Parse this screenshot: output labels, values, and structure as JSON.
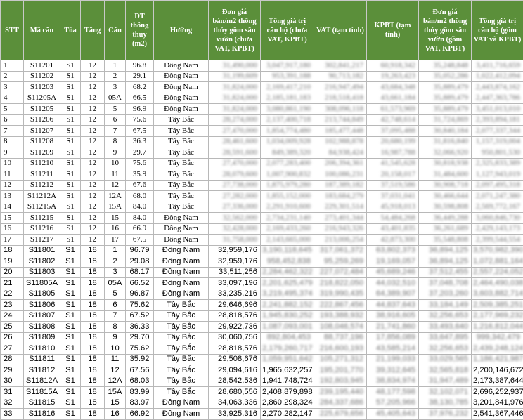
{
  "headers": [
    "STT",
    "Mã căn",
    "Tòa",
    "Tầng",
    "Căn",
    "DT thông thủy (m2)",
    "Hướng",
    "Đơn giá bán/m2 thông thủy gồm sân vườn (chưa VAT, KPBT)",
    "Tổng giá trị căn hộ (chưa VAT, KPBT)",
    "VAT (tạm tính)",
    "KPBT (tạm tính)",
    "Đơn giá bán/m2 thông thủy gồm sân vườn (gồm VAT, KPBT)",
    "Tổng giá trị căn hộ (gồm VAT và KPBT)"
  ],
  "rows": [
    [
      "1",
      "S11201",
      "S1",
      "12",
      "1",
      "96.8",
      "Đông Nam",
      "31,490,000",
      "3,047,917,180",
      "302,841,217",
      "60,918,342",
      "35,248,848",
      "3,411,716,659"
    ],
    [
      "2",
      "S11202",
      "S1",
      "12",
      "2",
      "29.1",
      "Đông Nam",
      "31,199,609",
      "953,391,188",
      "90,713,182",
      "19,263,423",
      "35,052,286",
      "1,022,412,094"
    ],
    [
      "3",
      "S11203",
      "S1",
      "12",
      "3",
      "68.2",
      "Đông Nam",
      "31,824,000",
      "2,169,417,210",
      "216,947,494",
      "43,684,348",
      "35,889,479",
      "2,443,874,162"
    ],
    [
      "4",
      "S11205A",
      "S1",
      "12",
      "05A",
      "66.5",
      "Đông Nam",
      "31,824,000",
      "2,185,181,183",
      "218,518,418",
      "43,661,184",
      "35,889,479",
      "2,447,363,786"
    ],
    [
      "5",
      "S11205",
      "S1",
      "12",
      "5",
      "96.9",
      "Đông Nam",
      "31,824,000",
      "3,080,861,190",
      "308,096,118",
      "61,573,969",
      "35,889,479",
      "3,451,013,010"
    ],
    [
      "6",
      "S11206",
      "S1",
      "12",
      "6",
      "75.6",
      "Tây Bắc",
      "28,274,000",
      "2,137,400,718",
      "213,744,849",
      "42,748,614",
      "31,724,869",
      "2,393,894,181"
    ],
    [
      "7",
      "S11207",
      "S1",
      "12",
      "7",
      "67.5",
      "Tây Bắc",
      "27,470,000",
      "1,854,774,480",
      "185,477,448",
      "37,095,488",
      "30,840,184",
      "2,077,337,344"
    ],
    [
      "8",
      "S11208",
      "S1",
      "12",
      "8",
      "36.3",
      "Tây Bắc",
      "28,461,600",
      "1,034,009,928",
      "102,988,878",
      "20,680,199",
      "31,816,840",
      "1,157,319,004"
    ],
    [
      "9",
      "S11209",
      "S1",
      "12",
      "9",
      "29.7",
      "Tây Bắc",
      "28,591,600",
      "849,389,320",
      "84,938,424",
      "16,987,788",
      "32,066,920",
      "950,801,530"
    ],
    [
      "10",
      "S11210",
      "S1",
      "12",
      "10",
      "75.6",
      "Tây Bắc",
      "27,470,000",
      "2,077,283,400",
      "206,394,361",
      "41,545,628",
      "30,818,938",
      "2,325,833,389"
    ],
    [
      "11",
      "S11211",
      "S1",
      "12",
      "11",
      "35.9",
      "Tây Bắc",
      "28,079,600",
      "1,007,900,832",
      "100,086,231",
      "20,158,017",
      "31,484,600",
      "1,127,943,019"
    ],
    [
      "12",
      "S11212",
      "S1",
      "12",
      "12",
      "67.6",
      "Tây Bắc",
      "27,738,000",
      "1,875,979,280",
      "187,389,182",
      "37,519,586",
      "30,908,718",
      "2,097,495,318"
    ],
    [
      "13",
      "S11212A",
      "S1",
      "12",
      "12A",
      "68.0",
      "Tây Bắc",
      "27,282,000",
      "1,855,152,000",
      "183,684,279",
      "37,031,041",
      "30,466,644",
      "2,071,247,380"
    ],
    [
      "14",
      "S11215A",
      "S1",
      "12",
      "15A",
      "84.0",
      "Tây Bắc",
      "27,336,000",
      "2,291,910,600",
      "229,301,514",
      "45,918,013",
      "30,598,808",
      "2,569,772,167"
    ],
    [
      "15",
      "S11215",
      "S1",
      "12",
      "15",
      "84.0",
      "Đông Nam",
      "32,562,000",
      "2,734,231,140",
      "273,401,344",
      "54,484,268",
      "36,449,288",
      "3,060,846,730"
    ],
    [
      "16",
      "S11216",
      "S1",
      "12",
      "16",
      "66.9",
      "Đông Nam",
      "32,428,000",
      "2,169,433,260",
      "216,943,326",
      "43,401,835",
      "36,261,689",
      "2,429,143,173"
    ],
    [
      "17",
      "S11217",
      "S1",
      "12",
      "17",
      "67.5",
      "Đông Nam",
      "31,758,000",
      "2,143,665,000",
      "213,006,254",
      "42,873,300",
      "35,548,808",
      "2,399,544,554"
    ],
    [
      "18",
      "S11801",
      "S1",
      "18",
      "1",
      "96.79",
      "Đông Nam",
      "32,959,176",
      "3,190,118,645",
      "317,061,372",
      "63,802,373",
      "36,894,125",
      "3,570,982,390"
    ],
    [
      "19",
      "S11802",
      "S1",
      "18",
      "2",
      "29.08",
      "Đông Nam",
      "32,959,176",
      "958,452,838",
      "95,259,269",
      "19,169,057",
      "36,894,125",
      "1,072,881,164"
    ],
    [
      "20",
      "S11803",
      "S1",
      "18",
      "3",
      "68.17",
      "Đông Nam",
      "33,511,256",
      "2,284,462,322",
      "227,072,484",
      "45,689,246",
      "37,512,455",
      "2,557,224,052"
    ],
    [
      "21",
      "S11805A",
      "S1",
      "18",
      "05A",
      "66.52",
      "Đông Nam",
      "33,097,196",
      "2,201,625,479",
      "218,822,050",
      "44,032,510",
      "37,048,708",
      "2,464,490,038"
    ],
    [
      "22",
      "S11805",
      "S1",
      "18",
      "5",
      "96.87",
      "Đông Nam",
      "33,235,216",
      "3,219,495,374",
      "319,990,435",
      "64,389,907",
      "37,203,260",
      "3,603,882,714"
    ],
    [
      "23",
      "S11806",
      "S1",
      "18",
      "6",
      "75.62",
      "Tây Bắc",
      "29,646,696",
      "2,241,882,152",
      "222,867,456",
      "44,837,643",
      "33,184,149",
      "2,509,385,251"
    ],
    [
      "24",
      "S11807",
      "S1",
      "18",
      "7",
      "67.52",
      "Tây Bắc",
      "28,818,576",
      "1,945,830,252",
      "193,388,932",
      "38,916,605",
      "32,256,653",
      "2,177,969,232"
    ],
    [
      "25",
      "S11808",
      "S1",
      "18",
      "8",
      "36.33",
      "Tây Bắc",
      "29,922,736",
      "1,087,093,001",
      "108,046,574",
      "21,741,860",
      "33,493,640",
      "1,216,812,044"
    ],
    [
      "26",
      "S11809",
      "S1",
      "18",
      "9",
      "29.70",
      "Tây Bắc",
      "30,060,756",
      "892,804,453",
      "88,737,196",
      "17,856,089",
      "33,647,895",
      "999,342,479"
    ],
    [
      "27",
      "S11810",
      "S1",
      "18",
      "10",
      "75.62",
      "Tây Bắc",
      "28,818,576",
      "2,179,260,717",
      "216,600,193",
      "43,585,214",
      "32,256,653",
      "2,439,248,124"
    ],
    [
      "28",
      "S11811",
      "S1",
      "18",
      "11",
      "35.92",
      "Tây Bắc",
      "29,508,676",
      "1,059,951,642",
      "105,271,312",
      "21,199,033",
      "33,029,565",
      "1,186,421,987"
    ],
    [
      "29",
      "S11812",
      "S1",
      "18",
      "12",
      "67.56",
      "Tây Bắc",
      "29,094,616",
      "1,965,632,257",
      "195,201,770",
      "39,312,645",
      "32,565,818",
      "2,200,146,672"
    ],
    [
      "30",
      "S11812A",
      "S1",
      "18",
      "12A",
      "68.03",
      "Tây Bắc",
      "28,542,536",
      "1,941,748,724",
      "192,803,945",
      "38,834,974",
      "31,947,489",
      "2,173,387,644"
    ],
    [
      "31",
      "S11815A",
      "S1",
      "18",
      "15A",
      "83.99",
      "Tây Bắc",
      "28,680,556",
      "2,408,879,898",
      "239,195,440",
      "48,177,598",
      "32,102,071",
      "2,696,252,937"
    ],
    [
      "32",
      "S11815",
      "S1",
      "18",
      "15",
      "83.97",
      "Đông Nam",
      "34,063,336",
      "2,860,298,324",
      "284,337,686",
      "57,205,966",
      "38,130,785",
      "3,201,841,976"
    ],
    [
      "33",
      "S11816",
      "S1",
      "18",
      "16",
      "66.92",
      "Đông Nam",
      "33,925,316",
      "2,270,282,147",
      "225,679,656",
      "45,405,643",
      "37,976,232",
      "2,541,367,446"
    ]
  ]
}
